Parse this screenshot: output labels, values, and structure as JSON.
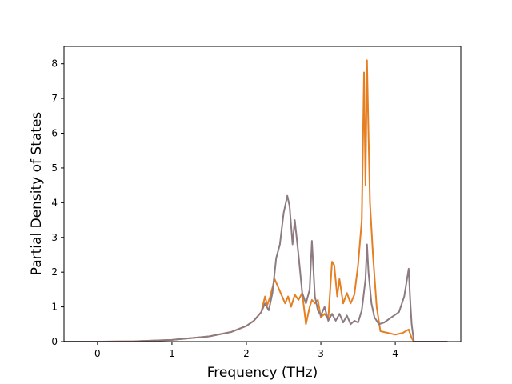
{
  "chart_data": {
    "type": "line",
    "title": "",
    "xlabel": "Frequency (THz)",
    "ylabel": "Partial Density of States",
    "xlim": [
      -0.45,
      4.88
    ],
    "ylim": [
      0,
      8.5
    ],
    "xticks": [
      {
        "value": 0,
        "label": "0"
      },
      {
        "value": 1,
        "label": "1"
      },
      {
        "value": 2,
        "label": "2"
      },
      {
        "value": 3,
        "label": "3"
      },
      {
        "value": 4,
        "label": "4"
      }
    ],
    "yticks": [
      {
        "value": 0,
        "label": "0"
      },
      {
        "value": 1,
        "label": "1"
      },
      {
        "value": 2,
        "label": "2"
      },
      {
        "value": 3,
        "label": "3"
      },
      {
        "value": 4,
        "label": "4"
      },
      {
        "value": 5,
        "label": "5"
      },
      {
        "value": 6,
        "label": "6"
      },
      {
        "value": 7,
        "label": "7"
      },
      {
        "value": 8,
        "label": "8"
      }
    ],
    "grid": false,
    "legend": "none",
    "series": [
      {
        "color": "#e67e22",
        "x": [
          -0.45,
          0,
          0.5,
          1.0,
          1.5,
          1.8,
          2.0,
          2.1,
          2.2,
          2.25,
          2.28,
          2.32,
          2.38,
          2.42,
          2.48,
          2.52,
          2.56,
          2.6,
          2.65,
          2.7,
          2.75,
          2.8,
          2.85,
          2.88,
          2.92,
          2.96,
          3.0,
          3.05,
          3.1,
          3.15,
          3.18,
          3.22,
          3.25,
          3.3,
          3.35,
          3.4,
          3.45,
          3.5,
          3.55,
          3.58,
          3.6,
          3.62,
          3.64,
          3.66,
          3.7,
          3.75,
          3.8,
          3.9,
          4.0,
          4.1,
          4.18,
          4.22,
          4.25,
          4.3,
          4.7
        ],
        "y": [
          0,
          0,
          0.01,
          0.05,
          0.15,
          0.28,
          0.45,
          0.6,
          0.85,
          1.3,
          1.05,
          1.3,
          1.8,
          1.6,
          1.3,
          1.1,
          1.3,
          1.0,
          1.35,
          1.2,
          1.4,
          0.5,
          1.0,
          1.2,
          1.1,
          1.2,
          0.7,
          0.8,
          0.65,
          2.3,
          2.2,
          1.3,
          1.8,
          1.1,
          1.4,
          1.1,
          1.35,
          2.2,
          3.5,
          7.75,
          4.5,
          8.1,
          6.0,
          4.0,
          2.5,
          1.0,
          0.3,
          0.25,
          0.2,
          0.25,
          0.35,
          0.1,
          0,
          0,
          0
        ]
      },
      {
        "color": "#8c7b80",
        "x": [
          -0.45,
          0,
          0.5,
          1.0,
          1.5,
          1.8,
          2.0,
          2.1,
          2.2,
          2.25,
          2.3,
          2.35,
          2.4,
          2.45,
          2.5,
          2.55,
          2.58,
          2.62,
          2.65,
          2.7,
          2.75,
          2.8,
          2.85,
          2.88,
          2.92,
          2.96,
          3.0,
          3.05,
          3.1,
          3.15,
          3.2,
          3.25,
          3.3,
          3.35,
          3.4,
          3.45,
          3.5,
          3.55,
          3.6,
          3.62,
          3.64,
          3.68,
          3.72,
          3.78,
          3.85,
          3.95,
          4.05,
          4.12,
          4.18,
          4.2,
          4.22,
          4.25,
          4.3,
          4.7
        ],
        "y": [
          0,
          0,
          0.01,
          0.05,
          0.15,
          0.28,
          0.45,
          0.6,
          0.85,
          1.1,
          0.9,
          1.4,
          2.4,
          2.8,
          3.7,
          4.2,
          3.9,
          2.8,
          3.5,
          2.5,
          1.4,
          1.1,
          1.5,
          2.9,
          1.3,
          0.9,
          0.75,
          1.0,
          0.6,
          0.8,
          0.6,
          0.8,
          0.55,
          0.75,
          0.5,
          0.6,
          0.55,
          0.9,
          1.8,
          2.8,
          2.0,
          1.1,
          0.7,
          0.5,
          0.55,
          0.7,
          0.85,
          1.3,
          2.1,
          1.2,
          0.5,
          0,
          0,
          0
        ]
      }
    ]
  }
}
